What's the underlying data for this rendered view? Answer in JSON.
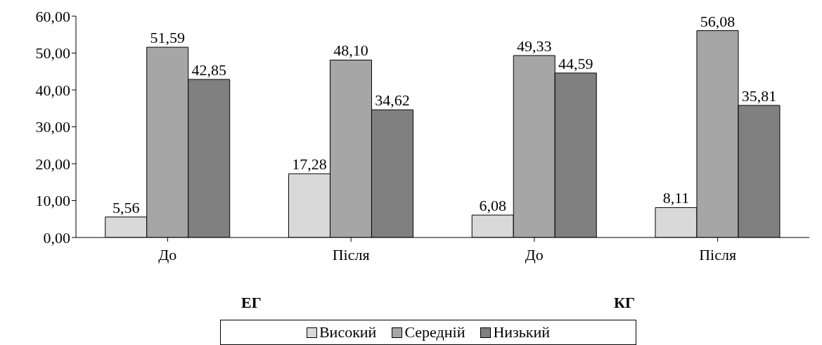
{
  "chart_data": {
    "type": "bar",
    "categories": [
      "До",
      "Після",
      "До",
      "Після"
    ],
    "series": [
      {
        "name": "Високий",
        "color": "#d9d9d9",
        "values": [
          5.56,
          17.28,
          6.08,
          8.11
        ],
        "value_labels": [
          "5,56",
          "17,28",
          "6,08",
          "8,11"
        ]
      },
      {
        "name": "Середній",
        "color": "#a6a6a6",
        "values": [
          51.59,
          48.1,
          49.33,
          56.08
        ],
        "value_labels": [
          "51,59",
          "48,10",
          "49,33",
          "56,08"
        ]
      },
      {
        "name": "Низький",
        "color": "#808080",
        "values": [
          42.85,
          34.62,
          44.59,
          35.81
        ],
        "value_labels": [
          "42,85",
          "34,62",
          "44,59",
          "35,81"
        ]
      }
    ],
    "ylim": [
      0,
      60
    ],
    "yticks": [
      {
        "value": 0,
        "label": "0,00"
      },
      {
        "value": 10,
        "label": "10,00"
      },
      {
        "value": 20,
        "label": "20,00"
      },
      {
        "value": 30,
        "label": "30,00"
      },
      {
        "value": 40,
        "label": "40,00"
      },
      {
        "value": 50,
        "label": "50,00"
      },
      {
        "value": 60,
        "label": "60,00"
      }
    ],
    "grid": false,
    "legend": "bottom",
    "annotations": [
      "ЕГ",
      "КГ"
    ]
  }
}
